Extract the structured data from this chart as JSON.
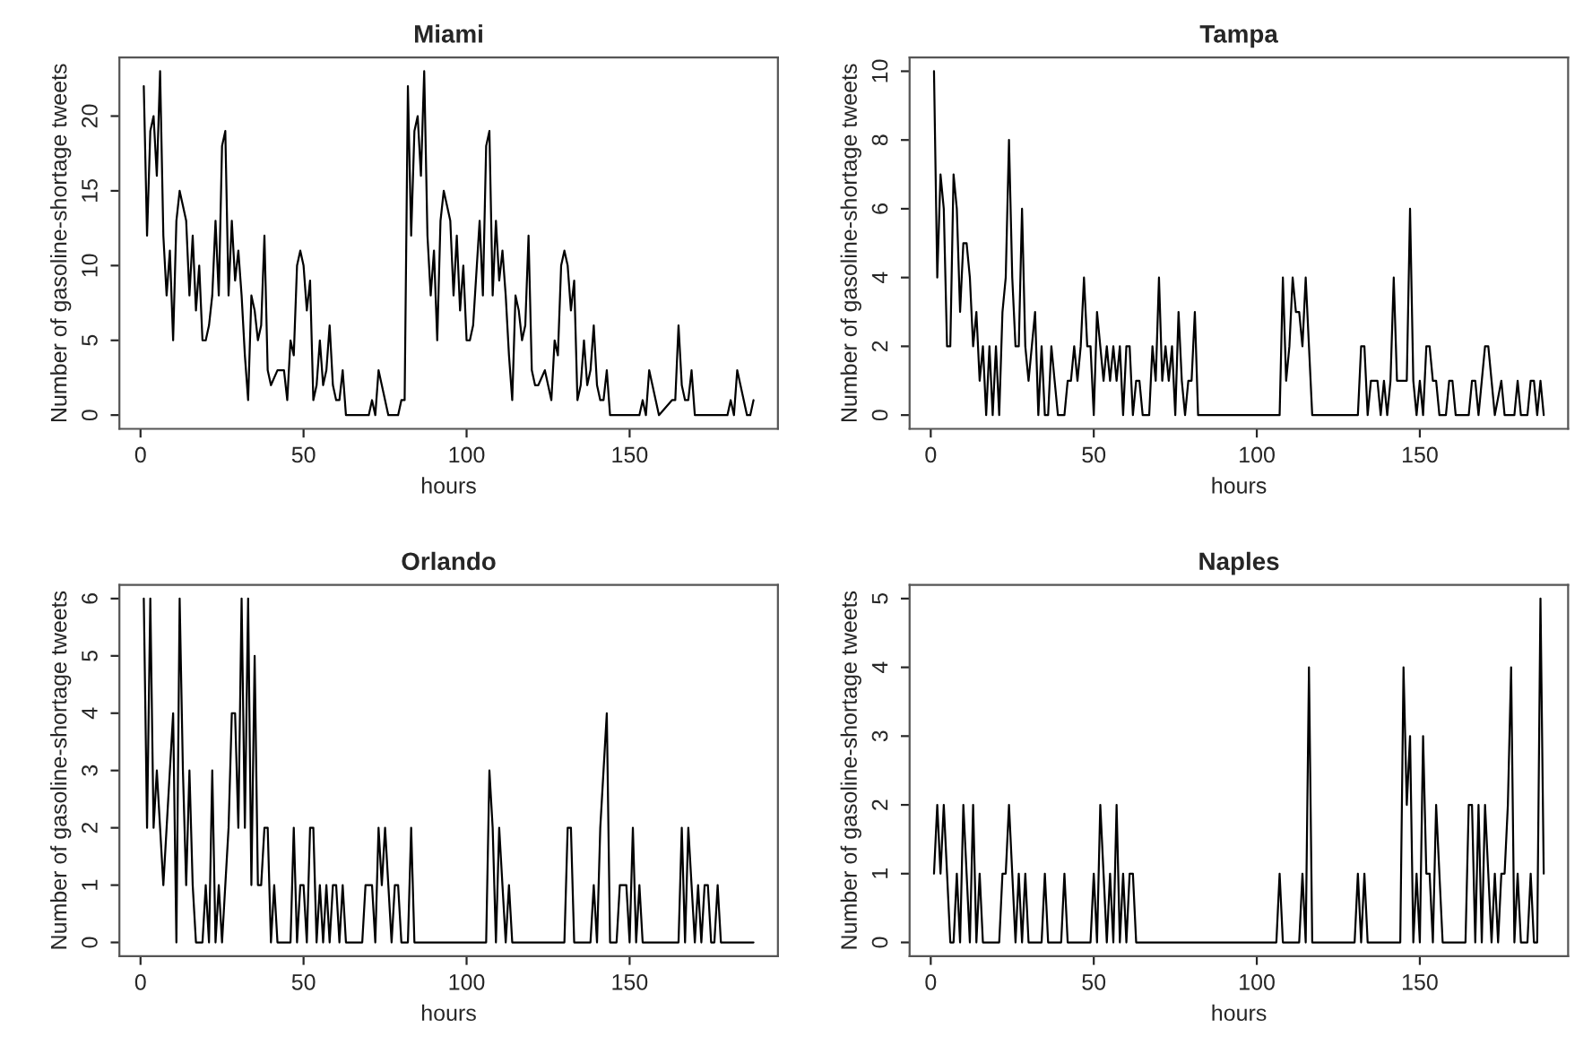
{
  "chart_data": [
    {
      "type": "line",
      "title": "Miami",
      "xlabel": "hours",
      "ylabel": "Number of gasoline-shortage tweets",
      "xlim": [
        -6.48,
        195.48
      ],
      "xticks": [
        0,
        50,
        100,
        150
      ],
      "ylim": [
        -0.92,
        23.92
      ],
      "yticks": [
        0,
        5,
        10,
        15,
        20
      ],
      "grid": false,
      "marker": "none",
      "line_style": "solid",
      "series": [
        {
          "color": "#000000",
          "x": [
            1,
            2,
            3,
            4,
            5,
            6,
            7,
            8,
            9,
            10,
            11,
            12,
            13,
            14,
            15,
            16,
            17,
            18,
            19,
            20,
            21,
            22,
            23,
            24,
            25,
            26,
            27,
            28,
            29,
            30,
            31,
            32,
            33,
            34,
            35,
            36,
            37,
            38,
            39,
            40,
            42,
            44,
            45,
            46,
            47,
            48,
            49,
            50,
            51,
            52,
            53,
            54,
            55,
            56,
            57,
            58,
            59,
            60,
            61,
            62,
            63,
            70,
            71,
            72,
            73,
            74,
            76,
            79,
            80,
            81,
            82,
            83,
            84,
            85,
            86,
            87,
            88,
            89,
            90,
            91,
            92,
            93,
            94,
            95,
            96,
            97,
            98,
            99,
            100,
            101,
            102,
            104,
            105,
            106,
            107,
            108,
            109,
            110,
            111,
            112,
            113,
            114,
            115,
            116,
            117,
            118,
            119,
            120,
            121,
            122,
            124,
            126,
            127,
            128,
            129,
            130,
            131,
            132,
            133,
            134,
            135,
            136,
            137,
            138,
            139,
            140,
            141,
            142,
            143,
            144,
            145,
            153,
            154,
            155,
            156,
            157,
            158,
            159,
            163,
            164,
            165,
            166,
            167,
            168,
            169,
            170,
            180,
            181,
            182,
            183,
            184,
            185,
            186,
            187,
            188
          ],
          "values": [
            22,
            12,
            19,
            20,
            16,
            23,
            12,
            8,
            11,
            5,
            13,
            15,
            14,
            13,
            8,
            12,
            7,
            10,
            5,
            5,
            6,
            8,
            13,
            8,
            18,
            19,
            8,
            13,
            9,
            11,
            8,
            4,
            1,
            8,
            7,
            5,
            6,
            12,
            3,
            2,
            3,
            3,
            1,
            5,
            4,
            10,
            11,
            10,
            7,
            9,
            1,
            2,
            5,
            2,
            3,
            6,
            2,
            1,
            1,
            3,
            0,
            0,
            1,
            0,
            3,
            2,
            0,
            0,
            1,
            1,
            22,
            12,
            19,
            20,
            16,
            23,
            12,
            8,
            11,
            5,
            13,
            15,
            14,
            13,
            8,
            12,
            7,
            10,
            5,
            5,
            6,
            13,
            8,
            18,
            19,
            8,
            13,
            9,
            11,
            8,
            4,
            1,
            8,
            7,
            5,
            6,
            12,
            3,
            2,
            2,
            3,
            1,
            5,
            4,
            10,
            11,
            10,
            7,
            9,
            1,
            2,
            5,
            2,
            3,
            6,
            2,
            1,
            1,
            3,
            0,
            0,
            0,
            1,
            0,
            3,
            2,
            1,
            0,
            1,
            1,
            6,
            2,
            1,
            1,
            3,
            0,
            0,
            1,
            0,
            3,
            2,
            1,
            0,
            0,
            1
          ]
        }
      ]
    },
    {
      "type": "line",
      "title": "Tampa",
      "xlabel": "hours",
      "ylabel": "Number of gasoline-shortage tweets",
      "xlim": [
        -6.48,
        195.48
      ],
      "xticks": [
        0,
        50,
        100,
        150
      ],
      "ylim": [
        -0.4,
        10.4
      ],
      "yticks": [
        0,
        2,
        4,
        6,
        8,
        10
      ],
      "grid": false,
      "marker": "none",
      "line_style": "solid",
      "series": [
        {
          "color": "#000000",
          "x": [
            1,
            2,
            3,
            4,
            5,
            6,
            7,
            8,
            9,
            10,
            11,
            12,
            13,
            14,
            15,
            16,
            17,
            18,
            19,
            20,
            21,
            22,
            23,
            24,
            25,
            26,
            27,
            28,
            29,
            30,
            31,
            32,
            33,
            34,
            35,
            36,
            37,
            38,
            39,
            41,
            42,
            43,
            44,
            45,
            46,
            47,
            48,
            49,
            50,
            51,
            52,
            53,
            54,
            55,
            56,
            57,
            58,
            59,
            60,
            61,
            62,
            63,
            64,
            65,
            67,
            68,
            69,
            70,
            71,
            72,
            73,
            74,
            75,
            76,
            77,
            78,
            79,
            80,
            81,
            82,
            107,
            108,
            109,
            110,
            111,
            112,
            113,
            114,
            115,
            116,
            117,
            131,
            132,
            133,
            134,
            135,
            137,
            138,
            139,
            140,
            141,
            142,
            143,
            146,
            147,
            148,
            149,
            150,
            151,
            152,
            153,
            154,
            155,
            156,
            158,
            159,
            160,
            161,
            165,
            166,
            167,
            168,
            169,
            170,
            171,
            172,
            173,
            175,
            176,
            179,
            180,
            181,
            183,
            184,
            185,
            186,
            187,
            188
          ],
          "values": [
            10,
            4,
            7,
            6,
            2,
            2,
            7,
            6,
            3,
            5,
            5,
            4,
            2,
            3,
            1,
            2,
            0,
            2,
            0,
            2,
            0,
            3,
            4,
            8,
            4,
            2,
            2,
            6,
            2,
            1,
            2,
            3,
            0,
            2,
            0,
            0,
            2,
            1,
            0,
            0,
            1,
            1,
            2,
            1,
            2,
            4,
            2,
            2,
            0,
            3,
            2,
            1,
            2,
            1,
            2,
            1,
            2,
            0,
            2,
            2,
            0,
            1,
            1,
            0,
            0,
            2,
            1,
            4,
            1,
            2,
            1,
            2,
            0,
            3,
            1,
            0,
            1,
            1,
            3,
            0,
            0,
            4,
            1,
            2,
            4,
            3,
            3,
            2,
            4,
            2,
            0,
            0,
            2,
            2,
            0,
            1,
            1,
            0,
            1,
            0,
            1,
            4,
            1,
            1,
            6,
            1,
            0,
            1,
            0,
            2,
            2,
            1,
            1,
            0,
            0,
            1,
            1,
            0,
            0,
            1,
            1,
            0,
            1,
            2,
            2,
            1,
            0,
            1,
            0,
            0,
            1,
            0,
            0,
            1,
            1,
            0,
            1,
            0
          ]
        }
      ]
    },
    {
      "type": "line",
      "title": "Orlando",
      "xlabel": "hours",
      "ylabel": "Number of gasoline-shortage tweets",
      "xlim": [
        -6.48,
        195.48
      ],
      "xticks": [
        0,
        50,
        100,
        150
      ],
      "ylim": [
        -0.24,
        6.24
      ],
      "yticks": [
        0,
        1,
        2,
        3,
        4,
        5,
        6
      ],
      "grid": false,
      "marker": "none",
      "line_style": "solid",
      "series": [
        {
          "color": "#000000",
          "x": [
            1,
            2,
            3,
            4,
            5,
            6,
            7,
            8,
            9,
            10,
            11,
            12,
            13,
            14,
            15,
            16,
            17,
            19,
            20,
            21,
            22,
            23,
            24,
            25,
            26,
            27,
            28,
            29,
            30,
            31,
            32,
            33,
            34,
            35,
            36,
            37,
            38,
            39,
            40,
            41,
            42,
            46,
            47,
            48,
            49,
            50,
            51,
            52,
            53,
            54,
            55,
            56,
            57,
            58,
            59,
            60,
            61,
            62,
            63,
            68,
            69,
            71,
            72,
            73,
            74,
            75,
            76,
            77,
            78,
            79,
            80,
            82,
            83,
            84,
            106,
            107,
            108,
            109,
            110,
            111,
            112,
            113,
            114,
            130,
            131,
            132,
            133,
            138,
            139,
            140,
            141,
            142,
            143,
            144,
            146,
            147,
            149,
            150,
            151,
            152,
            153,
            154,
            165,
            166,
            167,
            168,
            169,
            170,
            171,
            172,
            173,
            174,
            175,
            176,
            177,
            178,
            188
          ],
          "values": [
            6,
            2,
            6,
            2,
            3,
            2,
            1,
            2,
            3,
            4,
            0,
            6,
            3,
            1,
            3,
            1,
            0,
            0,
            1,
            0,
            3,
            0,
            1,
            0,
            1,
            2,
            4,
            4,
            2,
            6,
            2,
            6,
            1,
            5,
            1,
            1,
            2,
            2,
            0,
            1,
            0,
            0,
            2,
            0,
            1,
            1,
            0,
            2,
            2,
            0,
            1,
            0,
            1,
            0,
            1,
            1,
            0,
            1,
            0,
            0,
            1,
            1,
            0,
            2,
            1,
            2,
            1,
            0,
            1,
            1,
            0,
            0,
            2,
            0,
            0,
            3,
            2,
            0,
            2,
            1,
            0,
            1,
            0,
            0,
            2,
            2,
            0,
            0,
            1,
            0,
            2,
            3,
            4,
            0,
            0,
            1,
            1,
            0,
            2,
            0,
            1,
            0,
            0,
            2,
            0,
            2,
            1,
            0,
            1,
            0,
            1,
            1,
            0,
            0,
            1,
            0,
            0
          ]
        }
      ]
    },
    {
      "type": "line",
      "title": "Naples",
      "xlabel": "hours",
      "ylabel": "Number of gasoline-shortage tweets",
      "xlim": [
        -6.48,
        195.48
      ],
      "xticks": [
        0,
        50,
        100,
        150
      ],
      "ylim": [
        -0.2,
        5.2
      ],
      "yticks": [
        0,
        1,
        2,
        3,
        4,
        5
      ],
      "grid": false,
      "marker": "none",
      "line_style": "solid",
      "series": [
        {
          "color": "#000000",
          "x": [
            1,
            2,
            3,
            4,
            5,
            6,
            7,
            8,
            9,
            10,
            11,
            12,
            13,
            14,
            15,
            16,
            21,
            22,
            23,
            24,
            25,
            26,
            27,
            28,
            29,
            30,
            34,
            35,
            36,
            40,
            41,
            42,
            49,
            50,
            51,
            52,
            53,
            54,
            55,
            56,
            57,
            58,
            59,
            60,
            61,
            62,
            63,
            106,
            107,
            108,
            113,
            114,
            115,
            116,
            117,
            130,
            131,
            132,
            133,
            134,
            144,
            145,
            146,
            147,
            148,
            149,
            150,
            151,
            152,
            153,
            154,
            155,
            156,
            157,
            164,
            165,
            166,
            167,
            168,
            169,
            170,
            171,
            172,
            173,
            174,
            175,
            176,
            177,
            178,
            179,
            180,
            181,
            183,
            184,
            185,
            186,
            187,
            188
          ],
          "values": [
            1,
            2,
            1,
            2,
            1,
            0,
            0,
            1,
            0,
            2,
            1,
            0,
            2,
            0,
            1,
            0,
            0,
            1,
            1,
            2,
            1,
            0,
            1,
            0,
            1,
            0,
            0,
            1,
            0,
            0,
            1,
            0,
            0,
            1,
            0,
            2,
            1,
            0,
            1,
            0,
            2,
            0,
            1,
            0,
            1,
            1,
            0,
            0,
            1,
            0,
            0,
            1,
            0,
            4,
            0,
            0,
            1,
            0,
            1,
            0,
            0,
            4,
            2,
            3,
            0,
            1,
            0,
            3,
            1,
            1,
            0,
            2,
            1,
            0,
            0,
            2,
            2,
            0,
            2,
            0,
            2,
            1,
            0,
            1,
            0,
            1,
            1,
            2,
            4,
            0,
            1,
            0,
            0,
            1,
            0,
            0,
            5,
            1
          ]
        }
      ]
    }
  ]
}
